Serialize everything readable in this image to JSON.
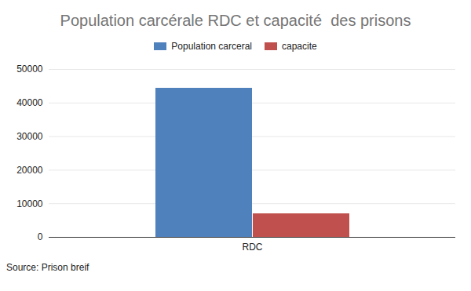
{
  "chart_data": {
    "type": "bar",
    "title": "Population carcérale RDC et capacité  des prisons",
    "caption": "Source: Prison breif",
    "categories": [
      "RDC"
    ],
    "series": [
      {
        "name": "Population carceral",
        "color": "#4f81bd",
        "values": [
          44400
        ]
      },
      {
        "name": "capacite",
        "color": "#c0504d",
        "values": [
          7000
        ]
      }
    ],
    "ylim": [
      0,
      50000
    ],
    "yticks": [
      0,
      10000,
      20000,
      30000,
      40000,
      50000
    ],
    "grid": true,
    "legend": "top"
  }
}
